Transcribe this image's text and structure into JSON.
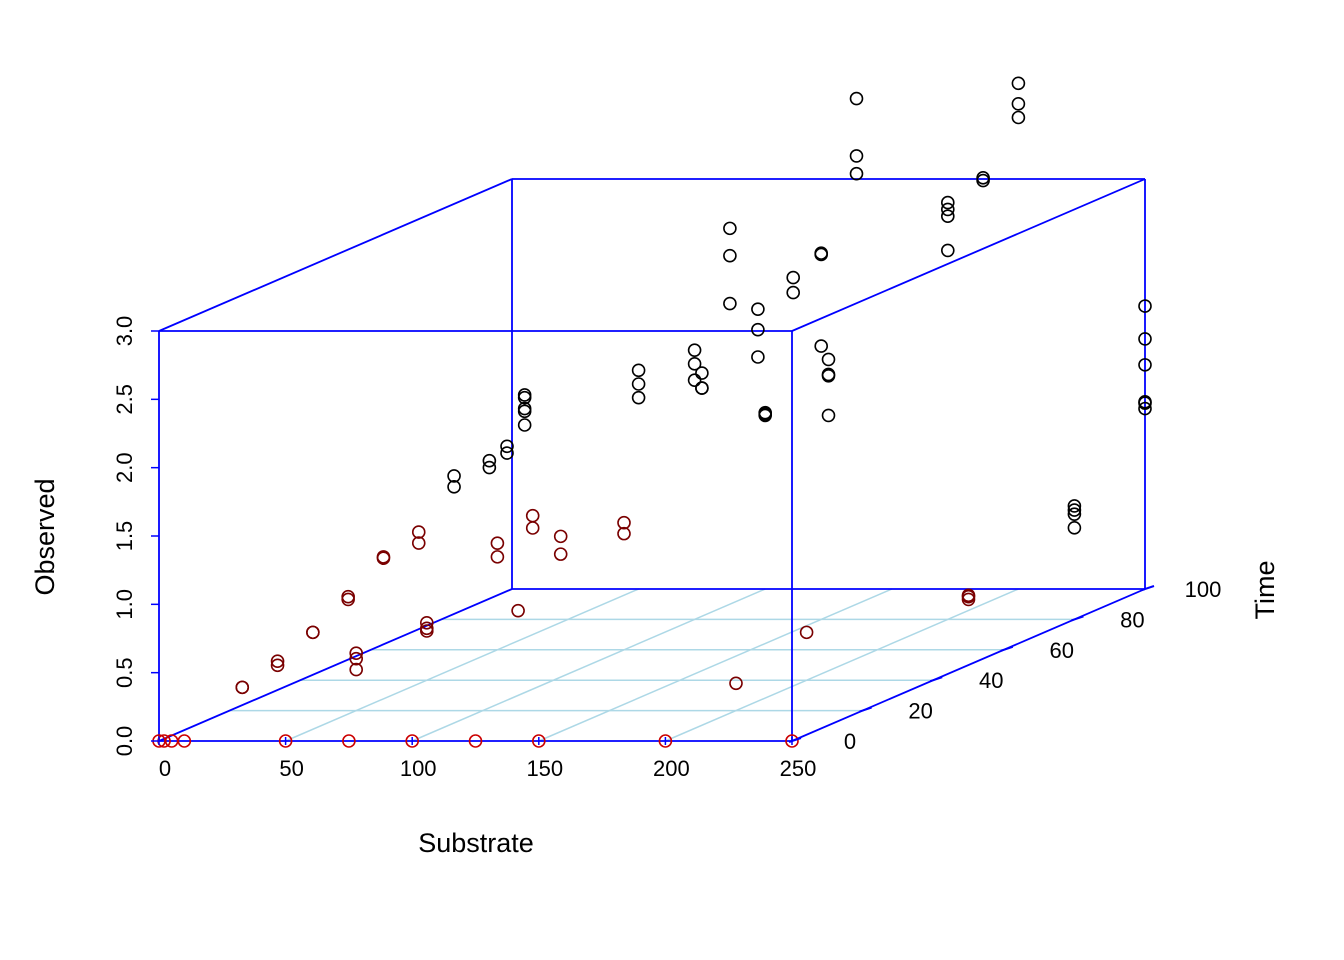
{
  "colors": {
    "box": "#0000ff",
    "grid": "#add8e6",
    "point_dark": "#000000",
    "point_mid": "#7a0000",
    "point_base": "#cc0000",
    "background": "#ffffff"
  },
  "chart_data": {
    "type": "scatter",
    "projection": "3d-scatterplot",
    "xlabel": "Substrate",
    "ylabel": "Time",
    "zlabel": "Observed",
    "xlim": [
      0,
      250
    ],
    "ylim": [
      0,
      100
    ],
    "zlim": [
      0,
      3
    ],
    "x_ticks": [
      "0",
      "50",
      "100",
      "150",
      "200",
      "250"
    ],
    "y_ticks": [
      "0",
      "20",
      "40",
      "60",
      "80",
      "100"
    ],
    "z_ticks": [
      "0.0",
      "0.5",
      "1.0",
      "1.5",
      "2.0",
      "2.5",
      "3.0"
    ],
    "grid_on_floor": true,
    "box": true,
    "points": [
      [
        0,
        0,
        0
      ],
      [
        2,
        0,
        0
      ],
      [
        5,
        0,
        0
      ],
      [
        10,
        0,
        0
      ],
      [
        50,
        0,
        0
      ],
      [
        75,
        0,
        0
      ],
      [
        100,
        0,
        0
      ],
      [
        125,
        0,
        0
      ],
      [
        150,
        0,
        0
      ],
      [
        200,
        0,
        0
      ],
      [
        250,
        0,
        0
      ],
      [
        5,
        20,
        0.17
      ],
      [
        5,
        20,
        0.17
      ],
      [
        5,
        30,
        0.22
      ],
      [
        5,
        30,
        0.25
      ],
      [
        5,
        40,
        0.35
      ],
      [
        5,
        40,
        0.35
      ],
      [
        5,
        50,
        0.48
      ],
      [
        5,
        50,
        0.5
      ],
      [
        5,
        60,
        0.67
      ],
      [
        5,
        60,
        0.68
      ],
      [
        5,
        70,
        0.75
      ],
      [
        5,
        70,
        0.67
      ],
      [
        5,
        80,
        0.97
      ],
      [
        5,
        80,
        1.05
      ],
      [
        5,
        90,
        1.0
      ],
      [
        5,
        90,
        1.05
      ],
      [
        5,
        95,
        1.05
      ],
      [
        5,
        95,
        1.1
      ],
      [
        5,
        100,
        1.32
      ],
      [
        5,
        100,
        1.4
      ],
      [
        5,
        100,
        1.42
      ],
      [
        5,
        100,
        1.3
      ],
      [
        5,
        100,
        1.2
      ],
      [
        50,
        20,
        0.3
      ],
      [
        50,
        20,
        0.38
      ],
      [
        50,
        20,
        0.42
      ],
      [
        50,
        40,
        0.36
      ],
      [
        50,
        40,
        0.42
      ],
      [
        50,
        40,
        0.38
      ],
      [
        50,
        60,
        0.78
      ],
      [
        50,
        60,
        0.68
      ],
      [
        50,
        70,
        0.87
      ],
      [
        50,
        70,
        0.78
      ],
      [
        50,
        100,
        1.4
      ],
      [
        50,
        100,
        1.6
      ],
      [
        50,
        100,
        1.5
      ],
      [
        75,
        60,
        0.7
      ],
      [
        75,
        60,
        0.83
      ],
      [
        75,
        100,
        1.58
      ],
      [
        75,
        100,
        1.47
      ],
      [
        75,
        100,
        1.47
      ],
      [
        100,
        30,
        0.62
      ],
      [
        100,
        60,
        0.85
      ],
      [
        100,
        60,
        0.93
      ],
      [
        100,
        100,
        1.27
      ],
      [
        100,
        100,
        1.28
      ],
      [
        100,
        100,
        1.29
      ],
      [
        100,
        80,
        1.75
      ],
      [
        100,
        80,
        1.87
      ],
      [
        100,
        80,
        1.97
      ],
      [
        100,
        90,
        2.2
      ],
      [
        100,
        90,
        2.55
      ],
      [
        100,
        90,
        2.75
      ],
      [
        125,
        100,
        1.27
      ],
      [
        125,
        100,
        1.56
      ],
      [
        125,
        100,
        1.57
      ],
      [
        125,
        100,
        1.68
      ],
      [
        125,
        80,
        1.92
      ],
      [
        125,
        80,
        2.12
      ],
      [
        125,
        80,
        2.27
      ],
      [
        125,
        90,
        2.28
      ],
      [
        125,
        90,
        2.39
      ],
      [
        150,
        80,
        2.0
      ],
      [
        150,
        80,
        2.68
      ],
      [
        150,
        80,
        2.67
      ],
      [
        150,
        90,
        3.15
      ],
      [
        150,
        90,
        3.28
      ],
      [
        150,
        90,
        3.7
      ],
      [
        200,
        20,
        0.2
      ],
      [
        200,
        40,
        0.35
      ],
      [
        250,
        50,
        0.48
      ],
      [
        250,
        50,
        0.5
      ],
      [
        250,
        50,
        0.51
      ],
      [
        250,
        80,
        0.67
      ],
      [
        250,
        80,
        0.77
      ],
      [
        250,
        80,
        0.8
      ],
      [
        250,
        80,
        0.83
      ],
      [
        250,
        100,
        1.32
      ],
      [
        250,
        100,
        1.36
      ],
      [
        250,
        100,
        1.37
      ],
      [
        250,
        100,
        1.64
      ],
      [
        250,
        100,
        1.83
      ],
      [
        250,
        100,
        2.07
      ],
      [
        200,
        80,
        2.95
      ],
      [
        200,
        80,
        3.05
      ],
      [
        200,
        80,
        3.0
      ],
      [
        200,
        80,
        2.7
      ],
      [
        200,
        90,
        3.1
      ],
      [
        200,
        90,
        3.12
      ],
      [
        200,
        100,
        3.45
      ],
      [
        200,
        100,
        3.55
      ],
      [
        200,
        100,
        3.7
      ]
    ]
  }
}
